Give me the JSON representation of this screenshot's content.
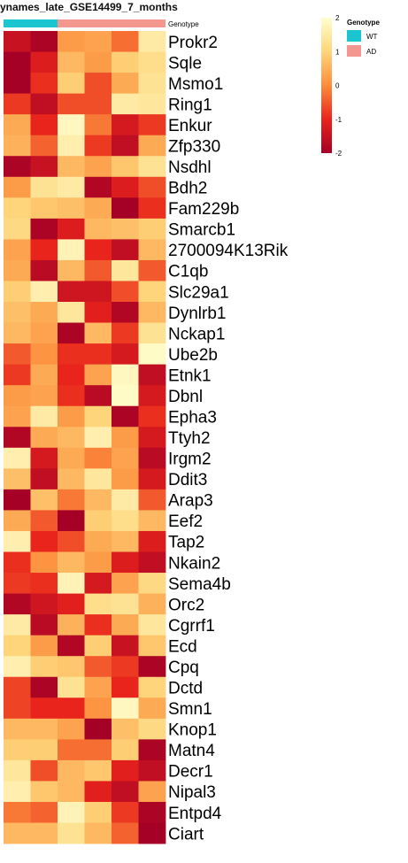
{
  "chart_data": {
    "type": "heatmap",
    "title": "ynames_late_GSE14499_7_months",
    "annotation": {
      "name": "Genotype",
      "columns": [
        "WT",
        "WT",
        "AD",
        "AD",
        "AD",
        "AD"
      ],
      "legend_title": "Genotype",
      "levels": [
        {
          "label": "WT",
          "color": "#1cc6d0"
        },
        {
          "label": "AD",
          "color": "#f4978e"
        }
      ]
    },
    "color_scale": {
      "ticks": [
        2,
        1,
        0,
        -1,
        -2
      ],
      "min": -2,
      "max": 2,
      "stops": [
        "#a50026",
        "#e8241c",
        "#fc8d3c",
        "#fed57a",
        "#ffffd0"
      ]
    },
    "rows": [
      {
        "gene": "Prokr2",
        "values": [
          -1.5,
          -1.9,
          0.2,
          0.3,
          -0.3,
          1.5
        ]
      },
      {
        "gene": "Sqle",
        "values": [
          -2.0,
          -1.2,
          0.6,
          0.2,
          0.9,
          1.2
        ]
      },
      {
        "gene": "Msmo1",
        "values": [
          -2.0,
          -0.9,
          0.9,
          -0.6,
          0.4,
          1.3
        ]
      },
      {
        "gene": "Ring1",
        "values": [
          -0.8,
          -1.6,
          -0.6,
          -0.6,
          1.5,
          1.4
        ]
      },
      {
        "gene": "Enkur",
        "values": [
          0.4,
          -1.0,
          1.8,
          -0.2,
          -1.3,
          -0.8
        ]
      },
      {
        "gene": "Zfp330",
        "values": [
          0.5,
          -0.4,
          1.6,
          -0.8,
          -1.6,
          0.4
        ]
      },
      {
        "gene": "Nsdhl",
        "values": [
          -1.9,
          -1.5,
          0.6,
          0.3,
          0.8,
          1.3
        ]
      },
      {
        "gene": "Bdh2",
        "values": [
          0.2,
          1.3,
          1.5,
          -1.8,
          -1.2,
          -0.6
        ]
      },
      {
        "gene": "Fam229b",
        "values": [
          1.0,
          0.8,
          0.7,
          0.4,
          -2.0,
          -0.9
        ]
      },
      {
        "gene": "Smarcb1",
        "values": [
          1.1,
          -1.9,
          -1.2,
          0.6,
          0.7,
          0.9
        ]
      },
      {
        "gene": "2700094K13Rik",
        "values": [
          0.3,
          -1.0,
          1.7,
          -1.0,
          -1.6,
          0.6
        ]
      },
      {
        "gene": "C1qb",
        "values": [
          0.4,
          -1.7,
          0.6,
          -0.5,
          1.4,
          -0.5
        ]
      },
      {
        "gene": "Slc29a1",
        "values": [
          0.9,
          1.6,
          -1.4,
          -1.4,
          -0.6,
          1.0
        ]
      },
      {
        "gene": "Dynlrb1",
        "values": [
          0.7,
          0.4,
          1.4,
          -1.1,
          -1.8,
          0.6
        ]
      },
      {
        "gene": "Nckap1",
        "values": [
          0.6,
          0.3,
          -1.9,
          0.6,
          -0.8,
          1.3
        ]
      },
      {
        "gene": "Ube2b",
        "values": [
          -0.5,
          0.1,
          -0.9,
          -0.9,
          -1.3,
          1.9
        ]
      },
      {
        "gene": "Etnk1",
        "values": [
          -0.8,
          0.4,
          -1.0,
          0.3,
          1.8,
          -1.6
        ]
      },
      {
        "gene": "Dbnl",
        "values": [
          0.2,
          0.3,
          -0.9,
          -1.7,
          1.9,
          -1.3
        ]
      },
      {
        "gene": "Epha3",
        "values": [
          0.3,
          1.5,
          0.2,
          1.0,
          -1.9,
          -0.9
        ]
      },
      {
        "gene": "Ttyh2",
        "values": [
          -1.8,
          0.4,
          0.6,
          1.6,
          0.2,
          -1.3
        ]
      },
      {
        "gene": "Irgm2",
        "values": [
          1.6,
          -1.3,
          0.4,
          -0.1,
          0.3,
          -1.7
        ]
      },
      {
        "gene": "Ddit3",
        "values": [
          0.7,
          -1.6,
          0.6,
          1.4,
          0.2,
          -1.3
        ]
      },
      {
        "gene": "Arap3",
        "values": [
          -2.0,
          0.7,
          -0.2,
          0.6,
          1.5,
          -0.5
        ]
      },
      {
        "gene": "Eef2",
        "values": [
          0.4,
          -0.5,
          -2.0,
          0.9,
          1.2,
          0.6
        ]
      },
      {
        "gene": "Tap2",
        "values": [
          1.6,
          -1.0,
          -0.6,
          0.4,
          0.6,
          -1.2
        ]
      },
      {
        "gene": "Nkain2",
        "values": [
          -0.9,
          0.1,
          0.6,
          0.2,
          -1.2,
          -1.6
        ]
      },
      {
        "gene": "Sema4b",
        "values": [
          -0.8,
          -0.9,
          1.7,
          -1.3,
          0.3,
          1.1
        ]
      },
      {
        "gene": "Orc2",
        "values": [
          -1.8,
          -1.4,
          -1.1,
          1.2,
          1.3,
          0.5
        ]
      },
      {
        "gene": "Cgrrf1",
        "values": [
          1.5,
          -1.7,
          0.5,
          -0.9,
          0.4,
          1.4
        ]
      },
      {
        "gene": "Ecd",
        "values": [
          1.0,
          0.2,
          -1.8,
          0.9,
          -1.5,
          0.8
        ]
      },
      {
        "gene": "Cpq",
        "values": [
          1.6,
          0.9,
          0.8,
          -0.5,
          -0.8,
          -1.9
        ]
      },
      {
        "gene": "Dctd",
        "values": [
          -0.7,
          -1.9,
          1.3,
          0.3,
          -1.0,
          1.0
        ]
      },
      {
        "gene": "Smn1",
        "values": [
          -0.7,
          -1.0,
          -1.0,
          0.1,
          1.8,
          0.4
        ]
      },
      {
        "gene": "Knop1",
        "values": [
          0.6,
          0.6,
          0.3,
          -2.0,
          0.7,
          1.1
        ]
      },
      {
        "gene": "Matn4",
        "values": [
          0.9,
          0.9,
          -0.3,
          -0.3,
          0.9,
          -1.9
        ]
      },
      {
        "gene": "Decr1",
        "values": [
          1.4,
          -0.6,
          0.6,
          0.8,
          -1.1,
          -1.6
        ]
      },
      {
        "gene": "Nipal3",
        "values": [
          1.6,
          0.8,
          0.6,
          -1.1,
          -1.6,
          0.3
        ]
      },
      {
        "gene": "Entpd4",
        "values": [
          -0.2,
          -0.4,
          1.7,
          0.9,
          -0.8,
          -1.9
        ]
      },
      {
        "gene": "Ciart",
        "values": [
          0.6,
          0.6,
          1.3,
          0.6,
          -0.4,
          -2.0
        ]
      }
    ]
  }
}
